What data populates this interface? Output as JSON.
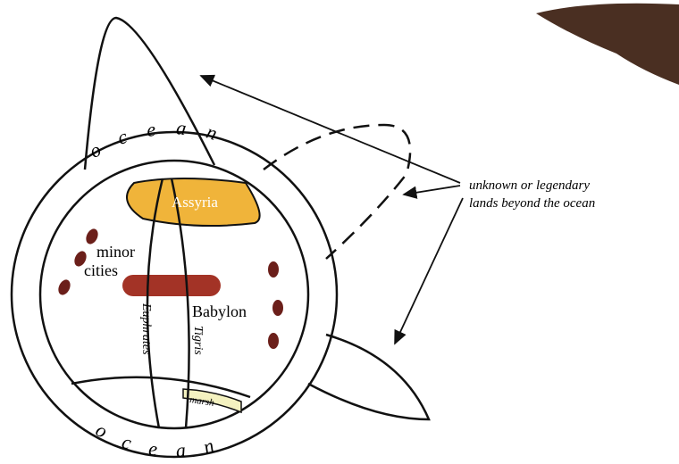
{
  "map": {
    "ocean_top": "ocean",
    "ocean_bottom": "ocean",
    "regions": [
      "Assyria",
      "Babylon",
      "marsh"
    ],
    "cities_label": [
      "minor",
      "cities"
    ],
    "rivers": [
      "Euphrates",
      "Tigris"
    ],
    "caption": [
      "unknown or legendary",
      "lands beyond the ocean"
    ]
  }
}
